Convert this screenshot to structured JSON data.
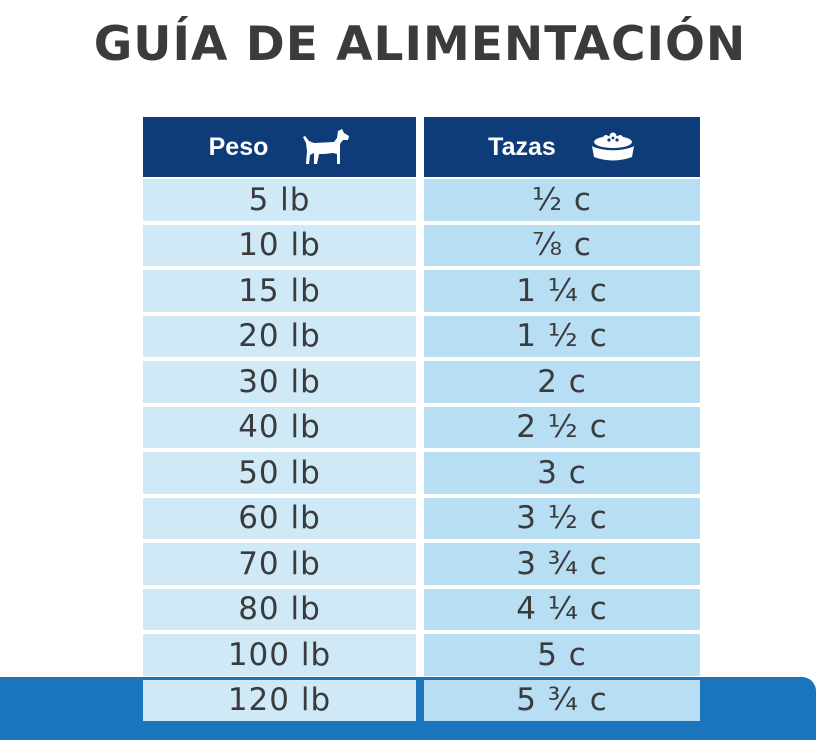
{
  "title": "GUÍA DE ALIMENTACIÓN",
  "table": {
    "headers": {
      "weight": "Peso",
      "weight_icon": "dog-icon",
      "cups": "Tazas",
      "cups_icon": "food-bowl-icon"
    },
    "rows": [
      {
        "weight": "5 lb",
        "cups": "½ c"
      },
      {
        "weight": "10 lb",
        "cups": "⅞ c"
      },
      {
        "weight": "15 lb",
        "cups": "1 ¼ c"
      },
      {
        "weight": "20 lb",
        "cups": "1 ½ c"
      },
      {
        "weight": "30 lb",
        "cups": "2 c"
      },
      {
        "weight": "40 lb",
        "cups": "2 ½ c"
      },
      {
        "weight": "50 lb",
        "cups": "3 c"
      },
      {
        "weight": "60 lb",
        "cups": "3 ½ c"
      },
      {
        "weight": "70 lb",
        "cups": "3 ¾ c"
      },
      {
        "weight": "80 lb",
        "cups": "4 ¼ c"
      },
      {
        "weight": "100 lb",
        "cups": "5 c"
      },
      {
        "weight": "120 lb",
        "cups": "5 ¾ c"
      }
    ]
  },
  "colors": {
    "header_bg": "#0d3c78",
    "cell_left": "#cfe9f7",
    "cell_right": "#b7def3",
    "band": "#1b75bc",
    "text": "#3a3b3d"
  }
}
